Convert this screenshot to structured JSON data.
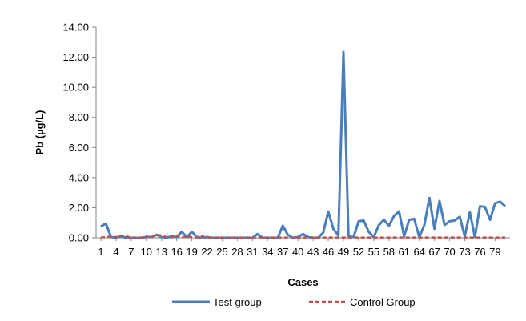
{
  "chart_data": {
    "type": "line",
    "title": "",
    "xlabel": "Cases",
    "ylabel": "Pb (µg/L)",
    "ylim": [
      0,
      14
    ],
    "y_ticks": [
      "0.00",
      "2.00",
      "4.00",
      "6.00",
      "8.00",
      "10.00",
      "12.00",
      "14.00"
    ],
    "x_tick_labels": [
      "1",
      "4",
      "7",
      "10",
      "13",
      "16",
      "19",
      "22",
      "25",
      "28",
      "31",
      "34",
      "37",
      "40",
      "43",
      "46",
      "49",
      "52",
      "55",
      "58",
      "61",
      "64",
      "67",
      "70",
      "73",
      "76",
      "79"
    ],
    "x": [
      1,
      2,
      3,
      4,
      5,
      6,
      7,
      8,
      9,
      10,
      11,
      12,
      13,
      14,
      15,
      16,
      17,
      18,
      19,
      20,
      21,
      22,
      23,
      24,
      25,
      26,
      27,
      28,
      29,
      30,
      31,
      32,
      33,
      34,
      35,
      36,
      37,
      38,
      39,
      40,
      41,
      42,
      43,
      44,
      45,
      46,
      47,
      48,
      49,
      50,
      51,
      52,
      53,
      54,
      55,
      56,
      57,
      58,
      59,
      60,
      61,
      62,
      63,
      64,
      65,
      66,
      67,
      68,
      69,
      70,
      71,
      72,
      73,
      74,
      75,
      76,
      77,
      78,
      79,
      80,
      81
    ],
    "grid": false,
    "legend_position": "bottom",
    "series": [
      {
        "name": "Test group",
        "color": "#4a7ebb",
        "style": "solid",
        "values": [
          0.75,
          0.95,
          0.05,
          0.0,
          0.1,
          0.0,
          0.0,
          0.0,
          0.0,
          0.05,
          0.05,
          0.2,
          0.05,
          0.0,
          0.1,
          0.05,
          0.4,
          0.05,
          0.4,
          0.05,
          0.0,
          0.05,
          0.0,
          0.0,
          0.0,
          0.0,
          0.0,
          0.0,
          0.0,
          0.0,
          0.0,
          0.25,
          0.0,
          0.0,
          0.0,
          0.0,
          0.8,
          0.2,
          0.0,
          0.05,
          0.25,
          0.05,
          0.0,
          0.0,
          0.35,
          1.75,
          0.6,
          0.15,
          12.35,
          0.1,
          0.05,
          1.1,
          1.15,
          0.4,
          0.05,
          0.85,
          1.2,
          0.8,
          1.45,
          1.75,
          0.1,
          1.2,
          1.25,
          0.05,
          0.85,
          2.65,
          0.6,
          2.45,
          0.85,
          1.1,
          1.15,
          1.4,
          0.1,
          1.7,
          0.05,
          2.1,
          2.05,
          1.2,
          2.3,
          2.4,
          2.1
        ]
      },
      {
        "name": "Control Group",
        "color": "#c0504d",
        "style": "dashed",
        "values": [
          0.02,
          0.05,
          0.1,
          0.05,
          0.15,
          0.1,
          0.02,
          0.02,
          0.02,
          0.08,
          0.05,
          0.2,
          0.15,
          0.05,
          0.02,
          0.15,
          0.02,
          0.1,
          0.05,
          0.02,
          0.1,
          0.02,
          0.02,
          0.02,
          0.02,
          0.02,
          0.02,
          0.02,
          0.02,
          0.02,
          0.02,
          0.02,
          0.02,
          0.02,
          0.02,
          0.02,
          0.02,
          0.02,
          0.02,
          0.02,
          0.02,
          0.02,
          0.02,
          0.02,
          0.02,
          0.02,
          0.02,
          0.02,
          0.02,
          0.02,
          0.02,
          0.02,
          0.02,
          0.02,
          0.02,
          0.02,
          0.02,
          0.02,
          0.02,
          0.02,
          0.02,
          0.02,
          0.02,
          0.02,
          0.02,
          0.02,
          0.02,
          0.02,
          0.02,
          0.02,
          0.02,
          0.02,
          0.02,
          0.02,
          0.02,
          0.02,
          0.02,
          0.02,
          0.02,
          0.02,
          0.02
        ]
      }
    ]
  }
}
